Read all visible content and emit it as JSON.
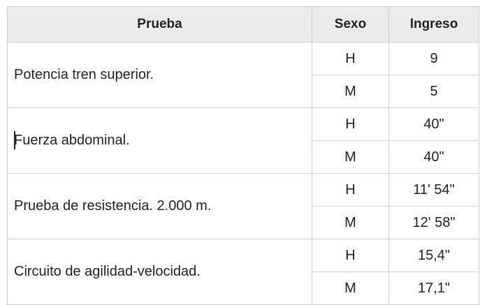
{
  "headers": {
    "prueba": "Prueba",
    "sexo": "Sexo",
    "ingreso": "Ingreso"
  },
  "rows": [
    {
      "prueba": "Potencia tren superior.",
      "h": {
        "sexo": "H",
        "ingreso": "9"
      },
      "m": {
        "sexo": "M",
        "ingreso": "5"
      }
    },
    {
      "prueba": "Fuerza abdominal.",
      "h": {
        "sexo": "H",
        "ingreso": "40\""
      },
      "m": {
        "sexo": "M",
        "ingreso": "40\""
      }
    },
    {
      "prueba": "Prueba de resistencia. 2.000 m.",
      "h": {
        "sexo": "H",
        "ingreso": "11' 54\""
      },
      "m": {
        "sexo": "M",
        "ingreso": "12' 58\""
      }
    },
    {
      "prueba": "Circuito de agilidad-velocidad.",
      "h": {
        "sexo": "H",
        "ingreso": "15,4\""
      },
      "m": {
        "sexo": "M",
        "ingreso": "17,1\""
      }
    }
  ]
}
